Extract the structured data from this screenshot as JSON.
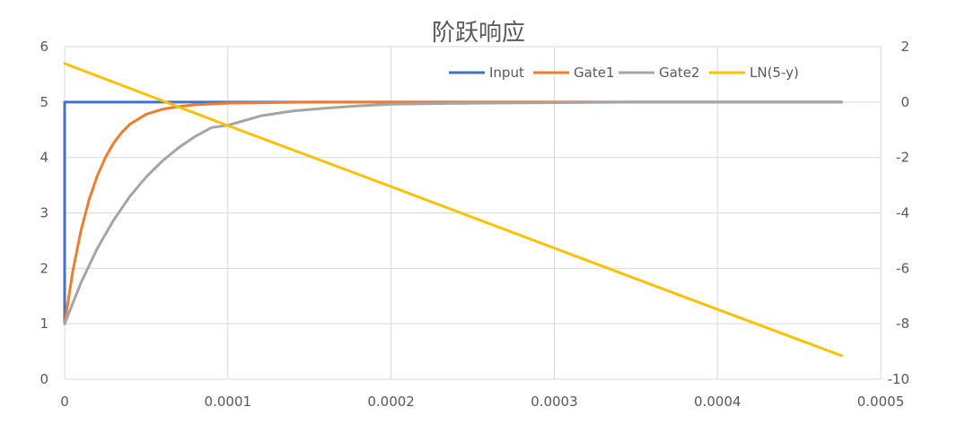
{
  "chart_data": {
    "type": "line",
    "title": "阶跃响应",
    "legend_position": "top-right",
    "grid": true,
    "x_ticks": [
      "0",
      "0.0001",
      "0.0002",
      "0.0003",
      "0.0004",
      "0.0005"
    ],
    "x_tick_values": [
      0,
      0.0001,
      0.0002,
      0.0003,
      0.0004,
      0.0005
    ],
    "xlim": [
      0,
      0.0005
    ],
    "y_ticks": [
      "0",
      "1",
      "2",
      "3",
      "4",
      "5",
      "6"
    ],
    "y_tick_values": [
      0,
      1,
      2,
      3,
      4,
      5,
      6
    ],
    "ylim": [
      0,
      6
    ],
    "y2_ticks": [
      "-10",
      "-8",
      "-6",
      "-4",
      "-2",
      "0",
      "2"
    ],
    "y2_tick_values": [
      -10,
      -8,
      -6,
      -4,
      -2,
      0,
      2
    ],
    "y2lim": [
      -10,
      2
    ],
    "series": [
      {
        "name": "Input",
        "color": "#4472C4",
        "axis": "left",
        "x": [
          0,
          0,
          0.000476
        ],
        "y": [
          1,
          5,
          5
        ]
      },
      {
        "name": "Gate1",
        "color": "#ED7D31",
        "axis": "left",
        "x": [
          0,
          5e-06,
          1e-05,
          1.5e-05,
          2e-05,
          2.5e-05,
          3e-05,
          3.5e-05,
          4e-05,
          5e-05,
          6e-05,
          7e-05,
          8e-05,
          0.0001,
          0.00015,
          0.0002,
          0.0003,
          0.0004,
          0.000476
        ],
        "y": [
          1,
          1.95,
          2.68,
          3.24,
          3.67,
          4.0,
          4.26,
          4.45,
          4.6,
          4.78,
          4.87,
          4.92,
          4.95,
          4.98,
          5.0,
          5.0,
          5.0,
          5.0,
          5.0
        ]
      },
      {
        "name": "Gate2",
        "color": "#A5A5A5",
        "axis": "left",
        "x": [
          0,
          1e-05,
          2e-05,
          3e-05,
          4e-05,
          5e-05,
          6e-05,
          7e-05,
          8e-05,
          9e-05,
          0.0001,
          0.00012,
          0.00014,
          0.00016,
          0.00018,
          0.0002,
          0.00025,
          0.0003,
          0.00035,
          0.0004,
          0.000476
        ],
        "y": [
          1,
          1.74,
          2.36,
          2.87,
          3.3,
          3.65,
          3.94,
          4.18,
          4.38,
          4.54,
          4.58,
          4.75,
          4.84,
          4.89,
          4.93,
          4.96,
          4.98,
          4.99,
          5.0,
          5.0,
          5.0
        ]
      },
      {
        "name": "LN(5-y)",
        "color": "#FFC000",
        "axis": "right",
        "x": [
          0,
          0.0001,
          0.0002,
          0.0003,
          0.0004,
          0.000476
        ],
        "y": [
          1.39,
          -0.85,
          -3.05,
          -5.27,
          -7.48,
          -9.15
        ]
      }
    ]
  }
}
